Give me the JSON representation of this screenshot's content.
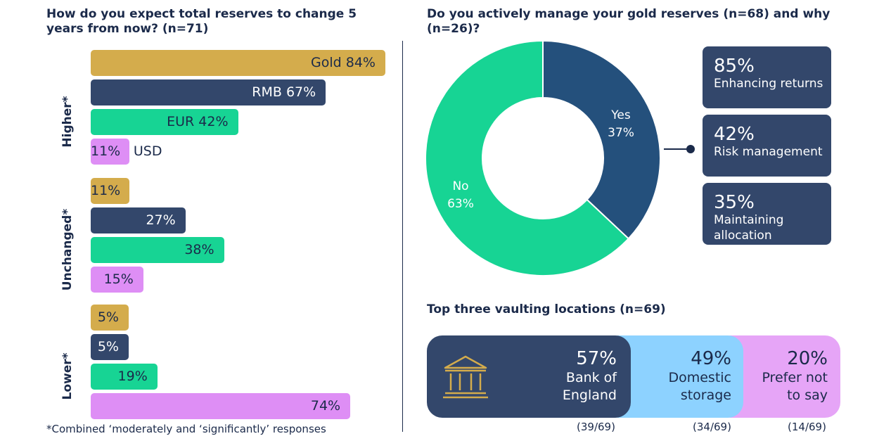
{
  "left_title": "How do you expect total reserves to change 5 years from now? (n=71)",
  "donut_title": "Do you actively manage your gold reserves (n=68) and why (n=26)?",
  "vault_title": "Top three vaulting locations (n=69)",
  "footnote": "*Combined ‘moderately and ‘significantly’ responses",
  "colors": {
    "Gold": "#d4ac4c",
    "RMB": "#33476b",
    "EUR": "#17d494",
    "USD": "#de8ef5",
    "yes": "#24507c",
    "no": "#17d494",
    "reason_box": "#33476b",
    "vault_1": "#33476b",
    "vault_2": "#8dd2ff",
    "vault_3": "#e6a5f7"
  },
  "chart_data": [
    {
      "type": "bar",
      "orientation": "horizontal",
      "title": "How do you expect total reserves to change 5 years from now? (n=71)",
      "categories": [
        "Higher*",
        "Unchanged*",
        "Lower*"
      ],
      "series": [
        {
          "name": "Gold",
          "values": [
            84,
            11,
            5
          ]
        },
        {
          "name": "RMB",
          "values": [
            67,
            27,
            5
          ]
        },
        {
          "name": "EUR",
          "values": [
            42,
            38,
            19
          ]
        },
        {
          "name": "USD",
          "values": [
            11,
            15,
            74
          ]
        }
      ],
      "unit": "%",
      "xlim": [
        0,
        84
      ],
      "labels": {
        "Higher*": [
          "Gold 84%",
          "RMB 67%",
          "EUR 42%",
          "11%"
        ],
        "Unchanged*": [
          "11%",
          "27%",
          "38%",
          "15%"
        ],
        "Lower*": [
          "5%",
          "5%",
          "19%",
          "74%"
        ]
      },
      "outside_label": {
        "group": "Higher*",
        "series": "USD",
        "text": "USD"
      }
    },
    {
      "type": "pie",
      "style": "donut",
      "title": "Do you actively manage your gold reserves (n=68) and why (n=26)?",
      "slices": [
        {
          "label": "Yes",
          "value": 37,
          "text": "37%"
        },
        {
          "label": "No",
          "value": 63,
          "text": "63%"
        }
      ],
      "reasons": [
        {
          "value": "85%",
          "label": "Enhancing returns"
        },
        {
          "value": "42%",
          "label": "Risk management"
        },
        {
          "value": "35%",
          "label": "Maintaining allocation"
        }
      ]
    },
    {
      "type": "bar",
      "orientation": "horizontal",
      "style": "overlapping-rounded",
      "title": "Top three vaulting locations (n=69)",
      "items": [
        {
          "value": "57%",
          "label": "Bank of England",
          "count": "(39/69)",
          "icon": "bank-building-icon"
        },
        {
          "value": "49%",
          "label": "Domestic storage",
          "count": "(34/69)"
        },
        {
          "value": "20%",
          "label": "Prefer not to say",
          "count": "(14/69)"
        }
      ]
    }
  ]
}
